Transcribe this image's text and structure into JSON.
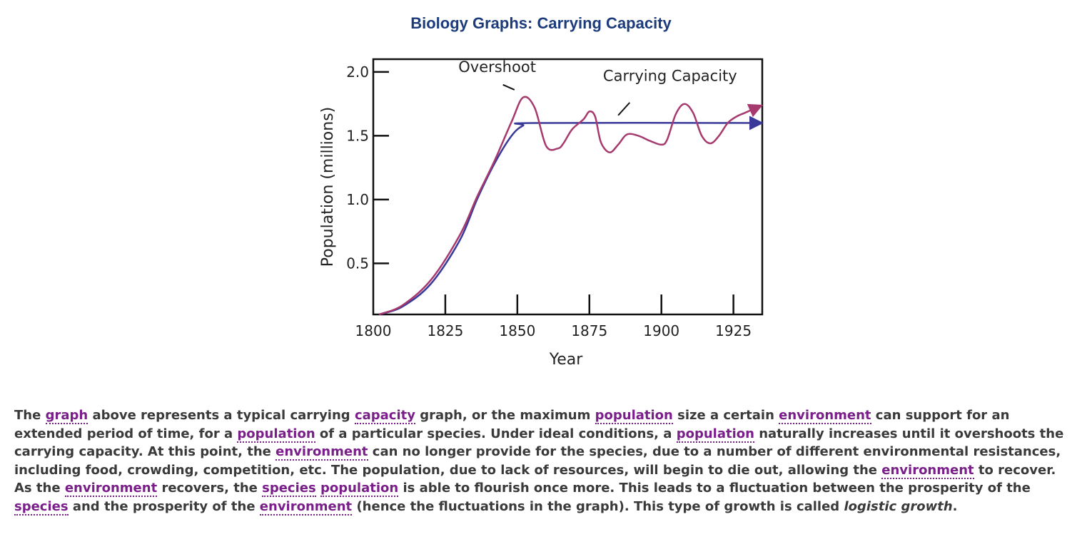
{
  "title": "Biology Graphs: Carrying Capacity",
  "chart_data": {
    "type": "line",
    "xlabel": "Year",
    "ylabel": "Population (millions)",
    "xlim": [
      1800,
      1935
    ],
    "ylim": [
      0.1,
      2.1
    ],
    "x_ticks": [
      1800,
      1825,
      1850,
      1875,
      1900,
      1925
    ],
    "y_ticks": [
      0.5,
      1.0,
      1.5,
      2.0
    ],
    "y_tick_labels": [
      "0.5",
      "1.0",
      "1.5",
      "2.0"
    ],
    "grid": false,
    "colors": {
      "actual": "#a63a6e",
      "logistic": "#39399a"
    },
    "series": [
      {
        "key": "actual",
        "x": [
          1802,
          1810,
          1820,
          1830,
          1836,
          1842,
          1848,
          1852,
          1856,
          1860,
          1864,
          1866,
          1869,
          1873,
          1875,
          1877,
          1879,
          1882,
          1885,
          1888,
          1892,
          1896,
          1900,
          1902,
          1905,
          1908,
          1911,
          1914,
          1917,
          1920,
          1923,
          1926,
          1929,
          1933
        ],
        "y": [
          0.1,
          0.17,
          0.37,
          0.72,
          1.02,
          1.3,
          1.61,
          1.8,
          1.72,
          1.42,
          1.4,
          1.44,
          1.55,
          1.63,
          1.69,
          1.65,
          1.45,
          1.37,
          1.43,
          1.51,
          1.5,
          1.46,
          1.43,
          1.47,
          1.67,
          1.75,
          1.68,
          1.5,
          1.44,
          1.5,
          1.6,
          1.65,
          1.68,
          1.72
        ]
      },
      {
        "key": "logistic",
        "x": [
          1802,
          1810,
          1820,
          1830,
          1836,
          1842,
          1848,
          1852,
          1856,
          1933
        ],
        "y": [
          0.1,
          0.16,
          0.34,
          0.68,
          1.0,
          1.28,
          1.5,
          1.58,
          1.6,
          1.6
        ]
      }
    ],
    "annotations": [
      {
        "text": "Overshoot",
        "x": 1843,
        "y": 2.0
      },
      {
        "text": "Carrying Capacity",
        "x": 1903,
        "y": 1.93
      }
    ]
  },
  "paragraph": {
    "t1": "The ",
    "k1": "graph",
    "t2": " above represents a typical carrying ",
    "k2": "capacity",
    "t3": " graph, or the maximum ",
    "k3": "population",
    "t4": " size a certain ",
    "k4": "environment",
    "t5": " can support for an extended period of time, for a ",
    "k5": "population",
    "t6": " of a particular species. Under ideal conditions, a ",
    "k6": "population",
    "t7": " naturally increases until it overshoots the carrying capacity.  At this point, the ",
    "k7": "environment",
    "t8": " can no longer provide for the species, due to a number of different environmental resistances, including food, crowding, competition, etc. The population, due to lack of resources, will begin to die out, allowing the ",
    "k8": "environment",
    "t9": " to recover. As the ",
    "k9": "environment",
    "t10": " recovers, the ",
    "k10": "species",
    "t11": " ",
    "k11": "population",
    "t12": " is able to flourish once more. This leads to a fluctuation between the prosperity of the ",
    "k12": "species",
    "t13": " and the prosperity of the ",
    "k13": "environment",
    "t14": " (hence the fluctuations in the graph). This type of growth is called ",
    "em": "logistic growth",
    "t15": "."
  }
}
